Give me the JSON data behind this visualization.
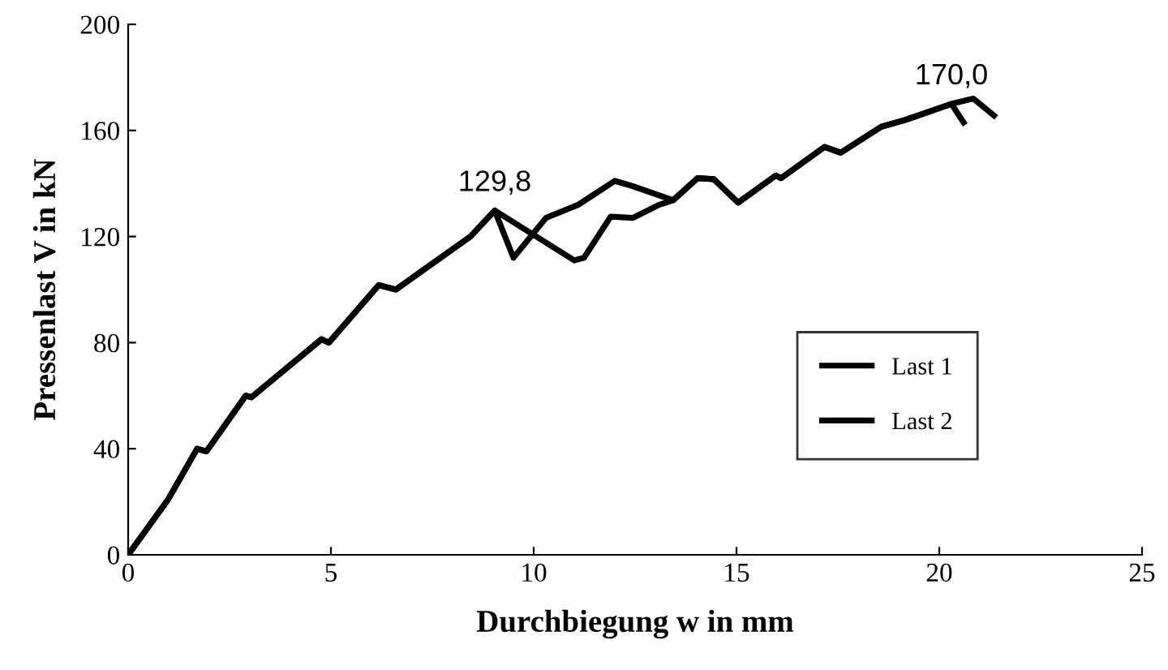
{
  "chart_data": {
    "type": "line",
    "xlabel": "Durchbiegung w in mm",
    "ylabel": "Pressenlast V in kN",
    "xlim": [
      0,
      25
    ],
    "xticks": [
      0,
      5,
      10,
      15,
      20,
      25
    ],
    "ylim": [
      0,
      200
    ],
    "yticks": [
      0,
      40,
      80,
      120,
      160,
      200
    ],
    "grid": false,
    "legend": "right",
    "marker": "none",
    "line_style": "solid",
    "series": [
      {
        "name": "Last 1",
        "color": "#000000",
        "x": [
          0,
          0.97,
          1.7,
          1.93,
          2.9,
          3.04,
          4.77,
          4.95,
          6.18,
          6.6,
          8.44,
          9.04,
          9.5,
          10.3,
          11.1,
          12.0,
          12.44,
          13.44,
          14.04,
          14.44,
          15.04,
          15.97,
          16.1,
          17.17,
          17.57,
          18.57,
          19.17,
          20.3,
          20.6
        ],
        "values": [
          0,
          20.5,
          40,
          39,
          60,
          59.4,
          81.3,
          80,
          101.7,
          100,
          120,
          129.8,
          112,
          127,
          132,
          141,
          139,
          133.7,
          142,
          141.6,
          132.8,
          143,
          142,
          153.8,
          151.6,
          161.4,
          164,
          170,
          163
        ]
      },
      {
        "name": "Last 2",
        "color": "#000000",
        "x": [
          0,
          0.97,
          1.7,
          1.93,
          2.9,
          3.04,
          4.77,
          4.95,
          6.18,
          6.6,
          8.44,
          9.04,
          11.0,
          11.24,
          11.9,
          12.44,
          13.1,
          13.44,
          14.04,
          14.44,
          15.04,
          15.97,
          16.1,
          17.17,
          17.57,
          18.57,
          19.17,
          20.3,
          20.84,
          21.35
        ],
        "values": [
          0,
          20.5,
          40,
          39,
          60,
          59.4,
          81.3,
          80,
          101.7,
          100,
          120,
          129.8,
          111,
          112,
          127.5,
          127,
          132,
          133.7,
          142,
          141.6,
          132.8,
          143,
          142,
          153.8,
          151.6,
          161.4,
          164,
          170,
          172,
          165.6
        ]
      }
    ],
    "annotations": [
      {
        "text": "129,8",
        "x": 9.04,
        "y": 129.8
      },
      {
        "text": "170,0",
        "x": 20.3,
        "y": 170
      }
    ]
  }
}
